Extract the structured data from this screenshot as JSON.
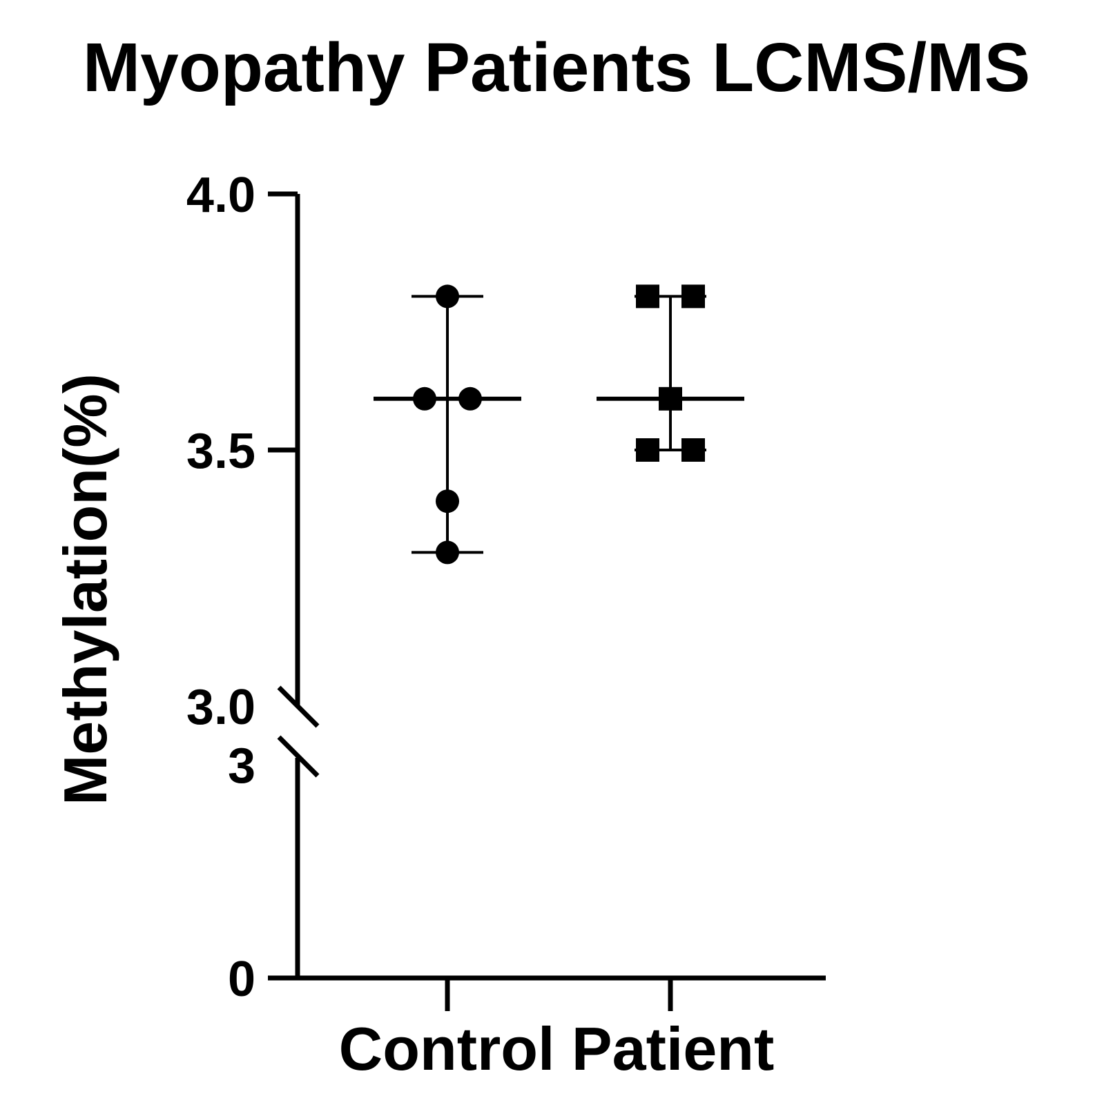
{
  "chart_data": {
    "type": "scatter",
    "title": "Myopathy Patients LCMS/MS",
    "xlabel": "Control Patient",
    "ylabel": "Methylation(%)",
    "categories": [
      "Control",
      "Patient"
    ],
    "y_axis_segments": [
      {
        "range": [
          0,
          3
        ],
        "tick_labels": [
          "0",
          "3"
        ]
      },
      {
        "range": [
          3.0,
          4.0
        ],
        "tick_labels": [
          "3.0",
          "3.5",
          "4.0"
        ]
      }
    ],
    "axis_break": [
      3,
      3.0
    ],
    "grid": false,
    "series": [
      {
        "category": "Control",
        "marker": "circle",
        "points": [
          3.8,
          3.6,
          3.6,
          3.4,
          3.3
        ],
        "mean": 3.6,
        "error_low": 3.3,
        "error_high": 3.8
      },
      {
        "category": "Patient",
        "marker": "square",
        "points": [
          3.8,
          3.8,
          3.6,
          3.5,
          3.5
        ],
        "mean": 3.6,
        "error_low": 3.5,
        "error_high": 3.8
      }
    ],
    "colors": {
      "ink": "#000000",
      "background": "#ffffff"
    }
  }
}
